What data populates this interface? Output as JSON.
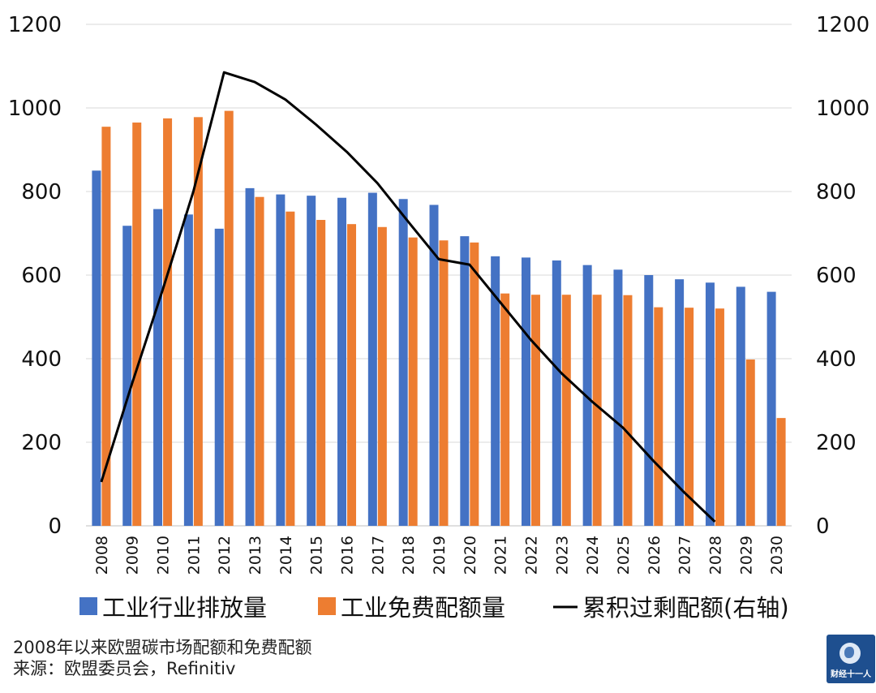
{
  "chart_data": {
    "type": "bar",
    "categories": [
      "2008",
      "2009",
      "2010",
      "2011",
      "2012",
      "2013",
      "2014",
      "2015",
      "2016",
      "2017",
      "2018",
      "2019",
      "2020",
      "2021",
      "2022",
      "2023",
      "2024",
      "2025",
      "2026",
      "2027",
      "2028",
      "2029",
      "2030"
    ],
    "series": [
      {
        "name": "工业行业排放量",
        "type": "bar",
        "axis": "left",
        "color": "#4472C4",
        "values": [
          850,
          718,
          758,
          745,
          711,
          808,
          793,
          790,
          785,
          797,
          782,
          768,
          693,
          645,
          642,
          635,
          624,
          613,
          600,
          590,
          582,
          572,
          560
        ]
      },
      {
        "name": "工业免费配额量",
        "type": "bar",
        "axis": "left",
        "color": "#ED7D31",
        "values": [
          955,
          965,
          975,
          978,
          993,
          787,
          752,
          732,
          722,
          715,
          690,
          683,
          678,
          556,
          553,
          553,
          553,
          552,
          523,
          522,
          520,
          398,
          258
        ]
      },
      {
        "name": "累积过剩配额(右轴)",
        "type": "line",
        "axis": "right",
        "color": "#000000",
        "values": [
          105,
          340,
          565,
          800,
          1085,
          1062,
          1020,
          960,
          895,
          820,
          728,
          638,
          625,
          535,
          445,
          365,
          297,
          235,
          155,
          80,
          10,
          null,
          null
        ]
      }
    ],
    "ylim": [
      0,
      1200
    ],
    "y2lim": [
      0,
      1200
    ],
    "yticks": [
      "0",
      "200",
      "400",
      "600",
      "800",
      "1000",
      "1200"
    ],
    "grid": true,
    "legend_position": "bottom"
  },
  "caption": {
    "line1": "2008年以来欧盟碳市场配额和免费配额",
    "line2": "来源：欧盟委员会，Refinitiv"
  },
  "logo": {
    "text": "财经十一人"
  }
}
